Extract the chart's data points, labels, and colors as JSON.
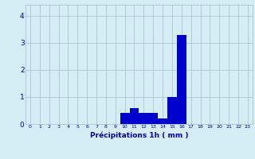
{
  "hours": [
    0,
    1,
    2,
    3,
    4,
    5,
    6,
    7,
    8,
    9,
    10,
    11,
    12,
    13,
    14,
    15,
    16,
    17,
    18,
    19,
    20,
    21,
    22,
    23
  ],
  "values": [
    0,
    0,
    0,
    0,
    0,
    0,
    0,
    0,
    0,
    0,
    0.4,
    0.6,
    0.4,
    0.4,
    0.2,
    1.0,
    3.3,
    0,
    0,
    0,
    0,
    0,
    0,
    0
  ],
  "bar_color": "#0000cc",
  "background_color": "#d5eef5",
  "grid_color": "#aabbcc",
  "xlabel": "Précipitations 1h ( mm )",
  "xlabel_color": "#0000aa",
  "tick_color": "#0000aa",
  "ylim": [
    0,
    4.4
  ],
  "yticks": [
    0,
    1,
    2,
    3,
    4
  ],
  "xlim": [
    -0.5,
    23.5
  ]
}
